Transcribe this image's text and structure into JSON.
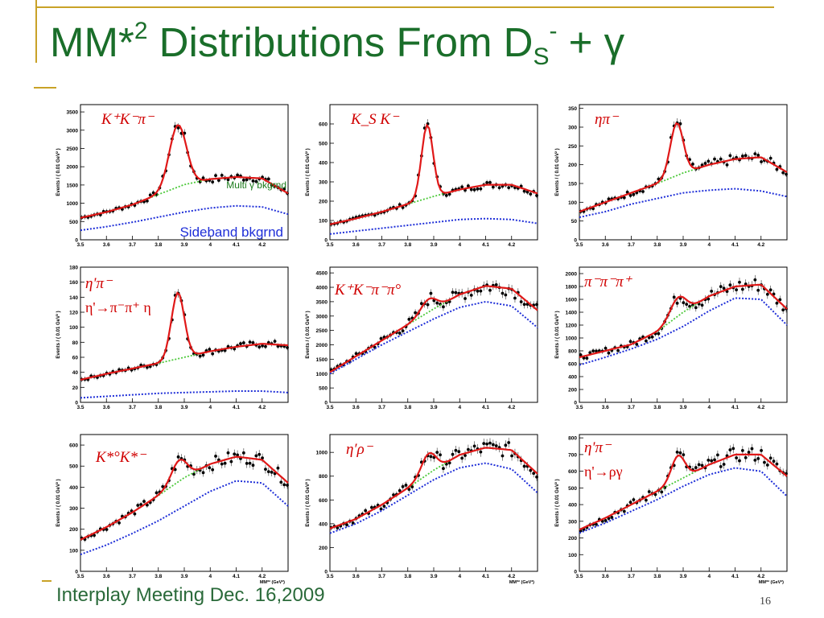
{
  "slide": {
    "title": "MM*",
    "title_sup": "2",
    "title_tail": " Distributions From D",
    "title_sub": "S",
    "title_sup2": "-",
    "title_end": " + γ",
    "footer": "Interplay Meeting Dec. 16,2009",
    "page_number": "16"
  },
  "chart_data": [
    {
      "type": "line",
      "label": "K⁺K⁻π⁻",
      "ylabel": "Events / ( 0.01 GeV² )",
      "xlabel": "",
      "xlim": [
        3.5,
        4.3
      ],
      "ylim": [
        0,
        3700
      ],
      "xticks": [
        3.5,
        3.6,
        3.7,
        3.8,
        3.9,
        4,
        4.1,
        4.2
      ],
      "yticks": [
        0,
        500,
        1000,
        1500,
        2000,
        2500,
        3000,
        3500
      ],
      "peak": {
        "x": 3.875,
        "height": 1700,
        "width": 0.033
      },
      "comb_bkg": [
        [
          3.5,
          600
        ],
        [
          3.6,
          760
        ],
        [
          3.7,
          960
        ],
        [
          3.8,
          1240
        ],
        [
          3.9,
          1510
        ],
        [
          4.0,
          1660
        ],
        [
          4.1,
          1720
        ],
        [
          4.2,
          1680
        ],
        [
          4.3,
          1270
        ]
      ],
      "sideband_bkg": [
        [
          3.5,
          260
        ],
        [
          3.6,
          360
        ],
        [
          3.7,
          480
        ],
        [
          3.8,
          620
        ],
        [
          3.9,
          760
        ],
        [
          4.0,
          870
        ],
        [
          4.1,
          930
        ],
        [
          4.2,
          900
        ],
        [
          4.3,
          700
        ]
      ],
      "annotations": [
        {
          "text": "Multi γ bkgrnd",
          "color": "#1a7a1a"
        },
        {
          "text": "Sideband bkgrnd",
          "color": "#1f2fd8"
        }
      ]
    },
    {
      "type": "line",
      "label": "K_S K⁻",
      "ylabel": "Events / ( 0.01 GeV² )",
      "xlabel": "",
      "xlim": [
        3.5,
        4.3
      ],
      "ylim": [
        0,
        700
      ],
      "xticks": [
        3.5,
        3.6,
        3.7,
        3.8,
        3.9,
        4,
        4.1,
        4.2
      ],
      "yticks": [
        0,
        100,
        200,
        300,
        400,
        500,
        600
      ],
      "peak": {
        "x": 3.875,
        "height": 380,
        "width": 0.022
      },
      "comb_bkg": [
        [
          3.5,
          80
        ],
        [
          3.6,
          110
        ],
        [
          3.7,
          145
        ],
        [
          3.8,
          185
        ],
        [
          3.9,
          225
        ],
        [
          4.0,
          260
        ],
        [
          4.1,
          285
        ],
        [
          4.2,
          285
        ],
        [
          4.3,
          240
        ]
      ],
      "sideband_bkg": [
        [
          3.5,
          30
        ],
        [
          3.6,
          45
        ],
        [
          3.7,
          60
        ],
        [
          3.8,
          75
        ],
        [
          3.9,
          90
        ],
        [
          4.0,
          105
        ],
        [
          4.1,
          110
        ],
        [
          4.2,
          105
        ],
        [
          4.3,
          85
        ]
      ],
      "annotations": []
    },
    {
      "type": "line",
      "label": "ηπ⁻",
      "ylabel": "Events / ( 0.01 GeV² )",
      "xlabel": "",
      "xlim": [
        3.5,
        4.3
      ],
      "ylim": [
        0,
        360
      ],
      "xticks": [
        3.5,
        3.6,
        3.7,
        3.8,
        3.9,
        4,
        4.1,
        4.2
      ],
      "yticks": [
        0,
        50,
        100,
        150,
        200,
        250,
        300,
        350
      ],
      "peak": {
        "x": 3.875,
        "height": 140,
        "width": 0.025
      },
      "comb_bkg": [
        [
          3.5,
          75
        ],
        [
          3.6,
          100
        ],
        [
          3.7,
          125
        ],
        [
          3.8,
          150
        ],
        [
          3.9,
          178
        ],
        [
          4.0,
          200
        ],
        [
          4.1,
          215
        ],
        [
          4.2,
          220
        ],
        [
          4.3,
          180
        ]
      ],
      "sideband_bkg": [
        [
          3.5,
          60
        ],
        [
          3.6,
          75
        ],
        [
          3.7,
          95
        ],
        [
          3.8,
          110
        ],
        [
          3.9,
          125
        ],
        [
          4.0,
          132
        ],
        [
          4.1,
          136
        ],
        [
          4.2,
          130
        ],
        [
          4.3,
          115
        ]
      ],
      "annotations": []
    },
    {
      "type": "line",
      "label": "η'π⁻",
      "label2": "η'→π⁻π⁺ η",
      "ylabel": "Events / ( 0.01 GeV² )",
      "xlabel": "",
      "xlim": [
        3.5,
        4.3
      ],
      "ylim": [
        0,
        180
      ],
      "xticks": [
        3.5,
        3.6,
        3.7,
        3.8,
        3.9,
        4,
        4.1,
        4.2
      ],
      "yticks": [
        0,
        20,
        40,
        60,
        80,
        100,
        120,
        140,
        160,
        180
      ],
      "peak": {
        "x": 3.875,
        "height": 88,
        "width": 0.025
      },
      "comb_bkg": [
        [
          3.5,
          30
        ],
        [
          3.6,
          38
        ],
        [
          3.7,
          45
        ],
        [
          3.8,
          52
        ],
        [
          3.9,
          60
        ],
        [
          4.0,
          68
        ],
        [
          4.1,
          74
        ],
        [
          4.2,
          78
        ],
        [
          4.3,
          76
        ]
      ],
      "sideband_bkg": [
        [
          3.5,
          6
        ],
        [
          3.6,
          8
        ],
        [
          3.7,
          10
        ],
        [
          3.8,
          12
        ],
        [
          3.9,
          13
        ],
        [
          4.0,
          14
        ],
        [
          4.1,
          15
        ],
        [
          4.2,
          15
        ],
        [
          4.3,
          13
        ]
      ],
      "annotations": []
    },
    {
      "type": "line",
      "label": "K⁺K⁻π⁻π°",
      "ylabel": "Events / ( 0.01 GeV² )",
      "xlabel": "",
      "xlim": [
        3.5,
        4.3
      ],
      "ylim": [
        0,
        4700
      ],
      "xticks": [
        3.5,
        3.6,
        3.7,
        3.8,
        3.9,
        4,
        4.1,
        4.2
      ],
      "yticks": [
        0,
        500,
        1000,
        1500,
        2000,
        2500,
        3000,
        3500,
        4000,
        4500
      ],
      "peak": {
        "x": 3.88,
        "height": 450,
        "width": 0.03
      },
      "comb_bkg": [
        [
          3.5,
          1050
        ],
        [
          3.6,
          1600
        ],
        [
          3.7,
          2150
        ],
        [
          3.8,
          2700
        ],
        [
          3.9,
          3250
        ],
        [
          4.0,
          3750
        ],
        [
          4.1,
          4050
        ],
        [
          4.2,
          3950
        ],
        [
          4.3,
          3200
        ]
      ],
      "sideband_bkg": [
        [
          3.5,
          1000
        ],
        [
          3.6,
          1500
        ],
        [
          3.7,
          2000
        ],
        [
          3.8,
          2450
        ],
        [
          3.9,
          2900
        ],
        [
          4.0,
          3300
        ],
        [
          4.1,
          3500
        ],
        [
          4.2,
          3350
        ],
        [
          4.3,
          2600
        ]
      ],
      "annotations": []
    },
    {
      "type": "line",
      "label": "π⁻π⁻π⁺",
      "ylabel": "Events / ( 0.01 GeV² )",
      "xlabel": "",
      "xlim": [
        3.5,
        4.3
      ],
      "ylim": [
        0,
        2100
      ],
      "xticks": [
        3.5,
        3.6,
        3.7,
        3.8,
        3.9,
        4,
        4.1,
        4.2
      ],
      "yticks": [
        0,
        200,
        400,
        600,
        800,
        1000,
        1200,
        1400,
        1600,
        1800,
        2000
      ],
      "peak": {
        "x": 3.88,
        "height": 290,
        "width": 0.03
      },
      "comb_bkg": [
        [
          3.5,
          700
        ],
        [
          3.6,
          800
        ],
        [
          3.7,
          900
        ],
        [
          3.8,
          1100
        ],
        [
          3.9,
          1400
        ],
        [
          4.0,
          1650
        ],
        [
          4.1,
          1800
        ],
        [
          4.2,
          1830
        ],
        [
          4.3,
          1450
        ]
      ],
      "sideband_bkg": [
        [
          3.5,
          580
        ],
        [
          3.6,
          700
        ],
        [
          3.7,
          830
        ],
        [
          3.8,
          980
        ],
        [
          3.9,
          1180
        ],
        [
          4.0,
          1420
        ],
        [
          4.1,
          1620
        ],
        [
          4.2,
          1600
        ],
        [
          4.3,
          1200
        ]
      ],
      "annotations": []
    },
    {
      "type": "line",
      "label": "K*°K*⁻",
      "ylabel": "Events / ( 0.01 GeV² )",
      "xlabel": "MM*² (GeV²)",
      "xlim": [
        3.5,
        4.3
      ],
      "ylim": [
        0,
        650
      ],
      "xticks": [
        3.5,
        3.6,
        3.7,
        3.8,
        3.9,
        4,
        4.1,
        4.2
      ],
      "yticks": [
        0,
        100,
        200,
        300,
        400,
        500,
        600
      ],
      "peak": {
        "x": 3.88,
        "height": 100,
        "width": 0.03
      },
      "comb_bkg": [
        [
          3.5,
          150
        ],
        [
          3.6,
          210
        ],
        [
          3.7,
          280
        ],
        [
          3.8,
          360
        ],
        [
          3.9,
          445
        ],
        [
          4.0,
          510
        ],
        [
          4.1,
          545
        ],
        [
          4.2,
          530
        ],
        [
          4.3,
          420
        ]
      ],
      "sideband_bkg": [
        [
          3.5,
          80
        ],
        [
          3.6,
          125
        ],
        [
          3.7,
          180
        ],
        [
          3.8,
          240
        ],
        [
          3.9,
          310
        ],
        [
          4.0,
          380
        ],
        [
          4.1,
          430
        ],
        [
          4.2,
          420
        ],
        [
          4.3,
          310
        ]
      ],
      "annotations": []
    },
    {
      "type": "line",
      "label": "η′ρ⁻",
      "ylabel": "Events / ( 0.01 GeV² )",
      "xlabel": "MM*² (GeV²)",
      "xlim": [
        3.5,
        4.3
      ],
      "ylim": [
        0,
        1150
      ],
      "xticks": [
        3.5,
        3.6,
        3.7,
        3.8,
        3.9,
        4,
        4.1,
        4.2
      ],
      "yticks": [
        0,
        200,
        400,
        600,
        800,
        1000
      ],
      "peak": {
        "x": 3.88,
        "height": 170,
        "width": 0.028
      },
      "comb_bkg": [
        [
          3.5,
          360
        ],
        [
          3.6,
          440
        ],
        [
          3.7,
          560
        ],
        [
          3.8,
          700
        ],
        [
          3.9,
          850
        ],
        [
          4.0,
          980
        ],
        [
          4.1,
          1040
        ],
        [
          4.2,
          1020
        ],
        [
          4.3,
          820
        ]
      ],
      "sideband_bkg": [
        [
          3.5,
          320
        ],
        [
          3.6,
          400
        ],
        [
          3.7,
          510
        ],
        [
          3.8,
          640
        ],
        [
          3.9,
          770
        ],
        [
          4.0,
          870
        ],
        [
          4.1,
          910
        ],
        [
          4.2,
          860
        ],
        [
          4.3,
          660
        ]
      ],
      "annotations": []
    },
    {
      "type": "line",
      "label": "η'π⁻",
      "label2": "η'→ργ",
      "ylabel": "Events / ( 0.01 GeV² )",
      "xlabel": "MM*² (GeV²)",
      "xlim": [
        3.5,
        4.3
      ],
      "ylim": [
        0,
        820
      ],
      "xticks": [
        3.5,
        3.6,
        3.7,
        3.8,
        3.9,
        4,
        4.1,
        4.2
      ],
      "yticks": [
        0,
        100,
        200,
        300,
        400,
        500,
        600,
        700,
        800
      ],
      "peak": {
        "x": 3.88,
        "height": 150,
        "width": 0.026
      },
      "comb_bkg": [
        [
          3.5,
          250
        ],
        [
          3.6,
          320
        ],
        [
          3.7,
          400
        ],
        [
          3.8,
          480
        ],
        [
          3.9,
          560
        ],
        [
          4.0,
          640
        ],
        [
          4.1,
          700
        ],
        [
          4.2,
          700
        ],
        [
          4.3,
          570
        ]
      ],
      "sideband_bkg": [
        [
          3.5,
          230
        ],
        [
          3.6,
          290
        ],
        [
          3.7,
          360
        ],
        [
          3.8,
          430
        ],
        [
          3.9,
          510
        ],
        [
          4.0,
          580
        ],
        [
          4.1,
          620
        ],
        [
          4.2,
          600
        ],
        [
          4.3,
          450
        ]
      ],
      "annotations": []
    }
  ]
}
